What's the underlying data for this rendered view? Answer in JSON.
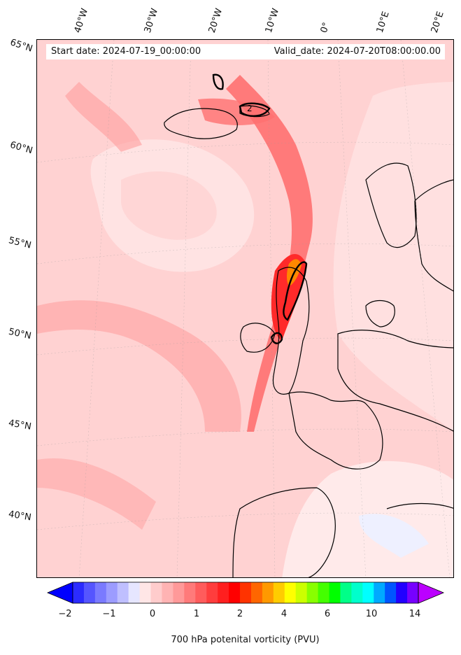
{
  "map": {
    "start_label": "Start date: 2024-07-19_00:00:00",
    "valid_label": "Valid_date: 2024-07-20T08:00:00.00",
    "contour_label": "2",
    "lon_labels": [
      "40°W",
      "30°W",
      "20°W",
      "10°W",
      "0°",
      "10°E",
      "20°E"
    ],
    "lat_labels": [
      "65°N",
      "60°N",
      "55°N",
      "50°N",
      "45°N",
      "40°N"
    ]
  },
  "colorbar": {
    "label": "700 hPa potenital vorticity (PVU)",
    "tick_labels": [
      "−2",
      "−1",
      "0",
      "1",
      "2",
      "4",
      "6",
      "10",
      "14"
    ],
    "colors": [
      "#0000ff",
      "#2b2bff",
      "#5555ff",
      "#7a7aff",
      "#9c9cff",
      "#bfbfff",
      "#e6e6ff",
      "#ffe6e6",
      "#ffcccc",
      "#ffb3b3",
      "#ff9999",
      "#ff7a7a",
      "#ff5c5c",
      "#ff3d3d",
      "#ff1f1f",
      "#ff0000",
      "#ff3300",
      "#ff6600",
      "#ff9900",
      "#ffcc00",
      "#ffff00",
      "#ccff00",
      "#88ff00",
      "#44ff00",
      "#00ff00",
      "#00ff88",
      "#00ffcc",
      "#00ffff",
      "#00aaff",
      "#0055ff",
      "#2200ff",
      "#7700ff",
      "#bb00ff"
    ]
  }
}
